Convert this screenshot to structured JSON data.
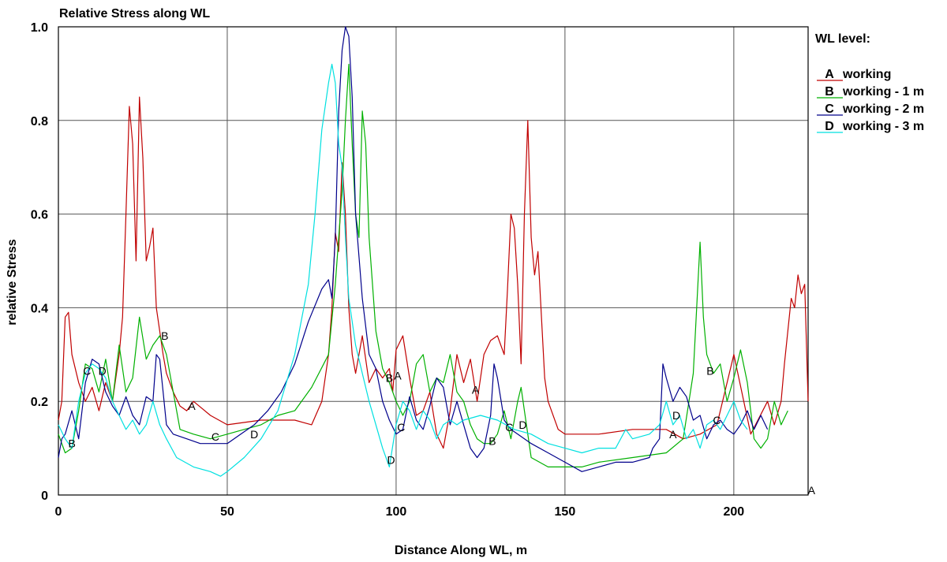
{
  "chart_data": {
    "type": "line",
    "title": "Relative Stress along WL",
    "xlabel": "Distance Along WL, m",
    "ylabel": "relative Stress",
    "xlim": [
      0,
      222
    ],
    "ylim": [
      0,
      1.0
    ],
    "xticks": [
      0,
      50,
      100,
      150,
      200
    ],
    "xtick_labels": [
      "0",
      "50",
      "100",
      "150",
      "200"
    ],
    "yticks": [
      0,
      0.2,
      0.4,
      0.6,
      0.8,
      1.0
    ],
    "ytick_labels": [
      "0",
      "0.2",
      "0.4",
      "0.6",
      "0.8",
      "1.0"
    ],
    "grid": true,
    "legend": {
      "title": "WL level:",
      "placement": "right",
      "entries": [
        {
          "marker": "A",
          "label": "working"
        },
        {
          "marker": "B",
          "label": "working - 1 m"
        },
        {
          "marker": "C",
          "label": "working - 2 m"
        },
        {
          "marker": "D",
          "label": "working - 3 m"
        }
      ]
    },
    "series": [
      {
        "name": "working",
        "marker": "A",
        "color": "#c00000",
        "x": [
          0,
          1,
          2,
          3,
          4,
          6,
          8,
          10,
          12,
          14,
          16,
          18,
          19,
          20,
          21,
          22,
          23,
          24,
          25,
          26,
          27,
          28,
          29,
          30,
          31,
          32,
          34,
          36,
          38,
          40,
          45,
          50,
          60,
          70,
          75,
          78,
          80,
          81,
          82,
          83,
          84,
          85,
          86,
          87,
          88,
          90,
          92,
          94,
          96,
          98,
          99,
          100,
          102,
          104,
          106,
          108,
          110,
          112,
          114,
          116,
          118,
          120,
          122,
          124,
          126,
          128,
          130,
          132,
          133,
          134,
          135,
          136,
          137,
          138,
          139,
          140,
          141,
          142,
          144,
          145,
          148,
          150,
          160,
          170,
          175,
          180,
          185,
          190,
          195,
          200,
          205,
          210,
          212,
          214,
          215,
          216,
          217,
          218,
          219,
          220,
          221,
          222
        ],
        "y": [
          0.16,
          0.2,
          0.38,
          0.39,
          0.3,
          0.24,
          0.2,
          0.23,
          0.18,
          0.24,
          0.2,
          0.3,
          0.38,
          0.6,
          0.83,
          0.75,
          0.5,
          0.85,
          0.72,
          0.5,
          0.53,
          0.57,
          0.4,
          0.35,
          0.3,
          0.26,
          0.22,
          0.19,
          0.18,
          0.2,
          0.17,
          0.15,
          0.16,
          0.16,
          0.15,
          0.2,
          0.3,
          0.4,
          0.56,
          0.52,
          0.71,
          0.6,
          0.4,
          0.3,
          0.26,
          0.34,
          0.24,
          0.27,
          0.25,
          0.27,
          0.22,
          0.31,
          0.34,
          0.25,
          0.17,
          0.18,
          0.22,
          0.13,
          0.1,
          0.18,
          0.3,
          0.24,
          0.29,
          0.2,
          0.3,
          0.33,
          0.34,
          0.3,
          0.44,
          0.6,
          0.57,
          0.45,
          0.28,
          0.6,
          0.8,
          0.55,
          0.47,
          0.52,
          0.25,
          0.2,
          0.14,
          0.13,
          0.13,
          0.14,
          0.14,
          0.14,
          0.12,
          0.13,
          0.15,
          0.3,
          0.13,
          0.2,
          0.15,
          0.2,
          0.28,
          0.35,
          0.42,
          0.4,
          0.47,
          0.43,
          0.45,
          0.2
        ]
      },
      {
        "name": "working - 1 m",
        "marker": "B",
        "color": "#00b000",
        "x": [
          0,
          2,
          4,
          6,
          8,
          10,
          12,
          14,
          16,
          18,
          20,
          22,
          24,
          26,
          28,
          30,
          32,
          34,
          36,
          40,
          45,
          50,
          55,
          60,
          65,
          70,
          75,
          80,
          82,
          84,
          85,
          86,
          87,
          88,
          89,
          90,
          91,
          92,
          94,
          96,
          98,
          100,
          102,
          104,
          106,
          108,
          110,
          112,
          114,
          116,
          118,
          120,
          122,
          124,
          126,
          128,
          130,
          132,
          134,
          136,
          137,
          138,
          140,
          145,
          150,
          155,
          160,
          170,
          180,
          185,
          188,
          190,
          191,
          192,
          194,
          196,
          198,
          200,
          202,
          204,
          206,
          208,
          210,
          212,
          214,
          216
        ],
        "y": [
          0.13,
          0.09,
          0.1,
          0.18,
          0.28,
          0.27,
          0.22,
          0.29,
          0.2,
          0.32,
          0.22,
          0.25,
          0.38,
          0.29,
          0.32,
          0.34,
          0.3,
          0.22,
          0.14,
          0.13,
          0.12,
          0.13,
          0.14,
          0.15,
          0.17,
          0.18,
          0.23,
          0.3,
          0.45,
          0.65,
          0.8,
          0.92,
          0.75,
          0.6,
          0.55,
          0.82,
          0.75,
          0.55,
          0.35,
          0.27,
          0.24,
          0.2,
          0.17,
          0.2,
          0.28,
          0.3,
          0.22,
          0.25,
          0.24,
          0.3,
          0.22,
          0.2,
          0.15,
          0.12,
          0.11,
          0.11,
          0.13,
          0.18,
          0.12,
          0.2,
          0.23,
          0.18,
          0.08,
          0.06,
          0.06,
          0.06,
          0.07,
          0.08,
          0.09,
          0.12,
          0.26,
          0.54,
          0.38,
          0.3,
          0.26,
          0.28,
          0.2,
          0.25,
          0.31,
          0.24,
          0.12,
          0.1,
          0.12,
          0.2,
          0.15,
          0.18
        ]
      },
      {
        "name": "working - 2 m",
        "marker": "C",
        "color": "#00008b",
        "x": [
          0,
          1,
          2,
          4,
          6,
          8,
          10,
          12,
          14,
          16,
          18,
          20,
          22,
          24,
          26,
          28,
          29,
          30,
          31,
          32,
          34,
          38,
          42,
          46,
          50,
          54,
          58,
          62,
          66,
          70,
          74,
          78,
          80,
          81,
          82,
          83,
          84,
          85,
          86,
          87,
          88,
          90,
          92,
          94,
          96,
          98,
          100,
          102,
          104,
          106,
          108,
          110,
          112,
          114,
          116,
          118,
          120,
          122,
          124,
          126,
          128,
          129,
          130,
          132,
          134,
          136,
          140,
          145,
          150,
          155,
          160,
          165,
          170,
          175,
          176,
          178,
          179,
          180,
          182,
          184,
          186,
          188,
          190,
          192,
          194,
          196,
          198,
          200,
          202,
          204,
          206,
          208,
          210
        ],
        "y": [
          0.08,
          0.12,
          0.13,
          0.18,
          0.12,
          0.24,
          0.29,
          0.28,
          0.22,
          0.19,
          0.17,
          0.21,
          0.17,
          0.15,
          0.21,
          0.2,
          0.3,
          0.29,
          0.22,
          0.15,
          0.13,
          0.12,
          0.11,
          0.11,
          0.11,
          0.13,
          0.15,
          0.18,
          0.22,
          0.28,
          0.37,
          0.44,
          0.46,
          0.42,
          0.55,
          0.82,
          0.95,
          1.0,
          0.98,
          0.85,
          0.6,
          0.42,
          0.3,
          0.27,
          0.2,
          0.16,
          0.13,
          0.14,
          0.21,
          0.16,
          0.14,
          0.19,
          0.25,
          0.23,
          0.15,
          0.2,
          0.15,
          0.1,
          0.08,
          0.1,
          0.17,
          0.28,
          0.25,
          0.16,
          0.14,
          0.13,
          0.11,
          0.09,
          0.07,
          0.05,
          0.06,
          0.07,
          0.07,
          0.08,
          0.1,
          0.12,
          0.28,
          0.25,
          0.2,
          0.23,
          0.21,
          0.16,
          0.17,
          0.12,
          0.15,
          0.16,
          0.14,
          0.13,
          0.15,
          0.18,
          0.14,
          0.17,
          0.14
        ]
      },
      {
        "name": "working - 3 m",
        "marker": "D",
        "color": "#00e0e0",
        "x": [
          0,
          2,
          4,
          6,
          8,
          10,
          12,
          14,
          16,
          18,
          20,
          22,
          24,
          26,
          28,
          30,
          32,
          35,
          40,
          45,
          48,
          50,
          55,
          60,
          65,
          70,
          74,
          76,
          78,
          80,
          81,
          82,
          83,
          84,
          85,
          86,
          88,
          90,
          92,
          94,
          96,
          98,
          100,
          102,
          104,
          106,
          108,
          110,
          112,
          114,
          116,
          118,
          120,
          125,
          130,
          135,
          140,
          145,
          150,
          155,
          160,
          165,
          168,
          170,
          175,
          178,
          180,
          182,
          184,
          186,
          188,
          190,
          192,
          194,
          196,
          198,
          200,
          202,
          204
        ],
        "y": [
          0.15,
          0.12,
          0.1,
          0.2,
          0.26,
          0.28,
          0.27,
          0.25,
          0.2,
          0.17,
          0.14,
          0.16,
          0.13,
          0.15,
          0.2,
          0.15,
          0.12,
          0.08,
          0.06,
          0.05,
          0.04,
          0.05,
          0.08,
          0.12,
          0.18,
          0.3,
          0.45,
          0.6,
          0.78,
          0.88,
          0.92,
          0.88,
          0.75,
          0.7,
          0.55,
          0.42,
          0.32,
          0.26,
          0.2,
          0.15,
          0.1,
          0.06,
          0.15,
          0.2,
          0.18,
          0.14,
          0.18,
          0.16,
          0.12,
          0.15,
          0.16,
          0.15,
          0.16,
          0.17,
          0.16,
          0.14,
          0.13,
          0.11,
          0.1,
          0.09,
          0.1,
          0.1,
          0.14,
          0.12,
          0.13,
          0.15,
          0.2,
          0.15,
          0.17,
          0.12,
          0.14,
          0.1,
          0.15,
          0.16,
          0.14,
          0.17,
          0.2,
          0.16,
          0.14
        ]
      }
    ],
    "annotations": [
      {
        "text": "C",
        "x": 8.5,
        "y": 0.265
      },
      {
        "text": "D",
        "x": 13,
        "y": 0.265
      },
      {
        "text": "B",
        "x": 4,
        "y": 0.11
      },
      {
        "text": "B",
        "x": 31.5,
        "y": 0.34
      },
      {
        "text": "A",
        "x": 39.5,
        "y": 0.19
      },
      {
        "text": "C",
        "x": 46.5,
        "y": 0.125
      },
      {
        "text": "D",
        "x": 58,
        "y": 0.13
      },
      {
        "text": "B",
        "x": 98,
        "y": 0.25
      },
      {
        "text": "A",
        "x": 100.5,
        "y": 0.255
      },
      {
        "text": "C",
        "x": 101.5,
        "y": 0.145
      },
      {
        "text": "D",
        "x": 98.5,
        "y": 0.075
      },
      {
        "text": "A",
        "x": 123.5,
        "y": 0.225
      },
      {
        "text": "B",
        "x": 128.5,
        "y": 0.115
      },
      {
        "text": "C",
        "x": 133.5,
        "y": 0.145
      },
      {
        "text": "D",
        "x": 137.5,
        "y": 0.15
      },
      {
        "text": "D",
        "x": 183,
        "y": 0.17
      },
      {
        "text": "A",
        "x": 182,
        "y": 0.13
      },
      {
        "text": "C",
        "x": 195,
        "y": 0.16
      },
      {
        "text": "B",
        "x": 193,
        "y": 0.265
      },
      {
        "text": "A",
        "x": 223,
        "y": 0.01
      }
    ]
  }
}
